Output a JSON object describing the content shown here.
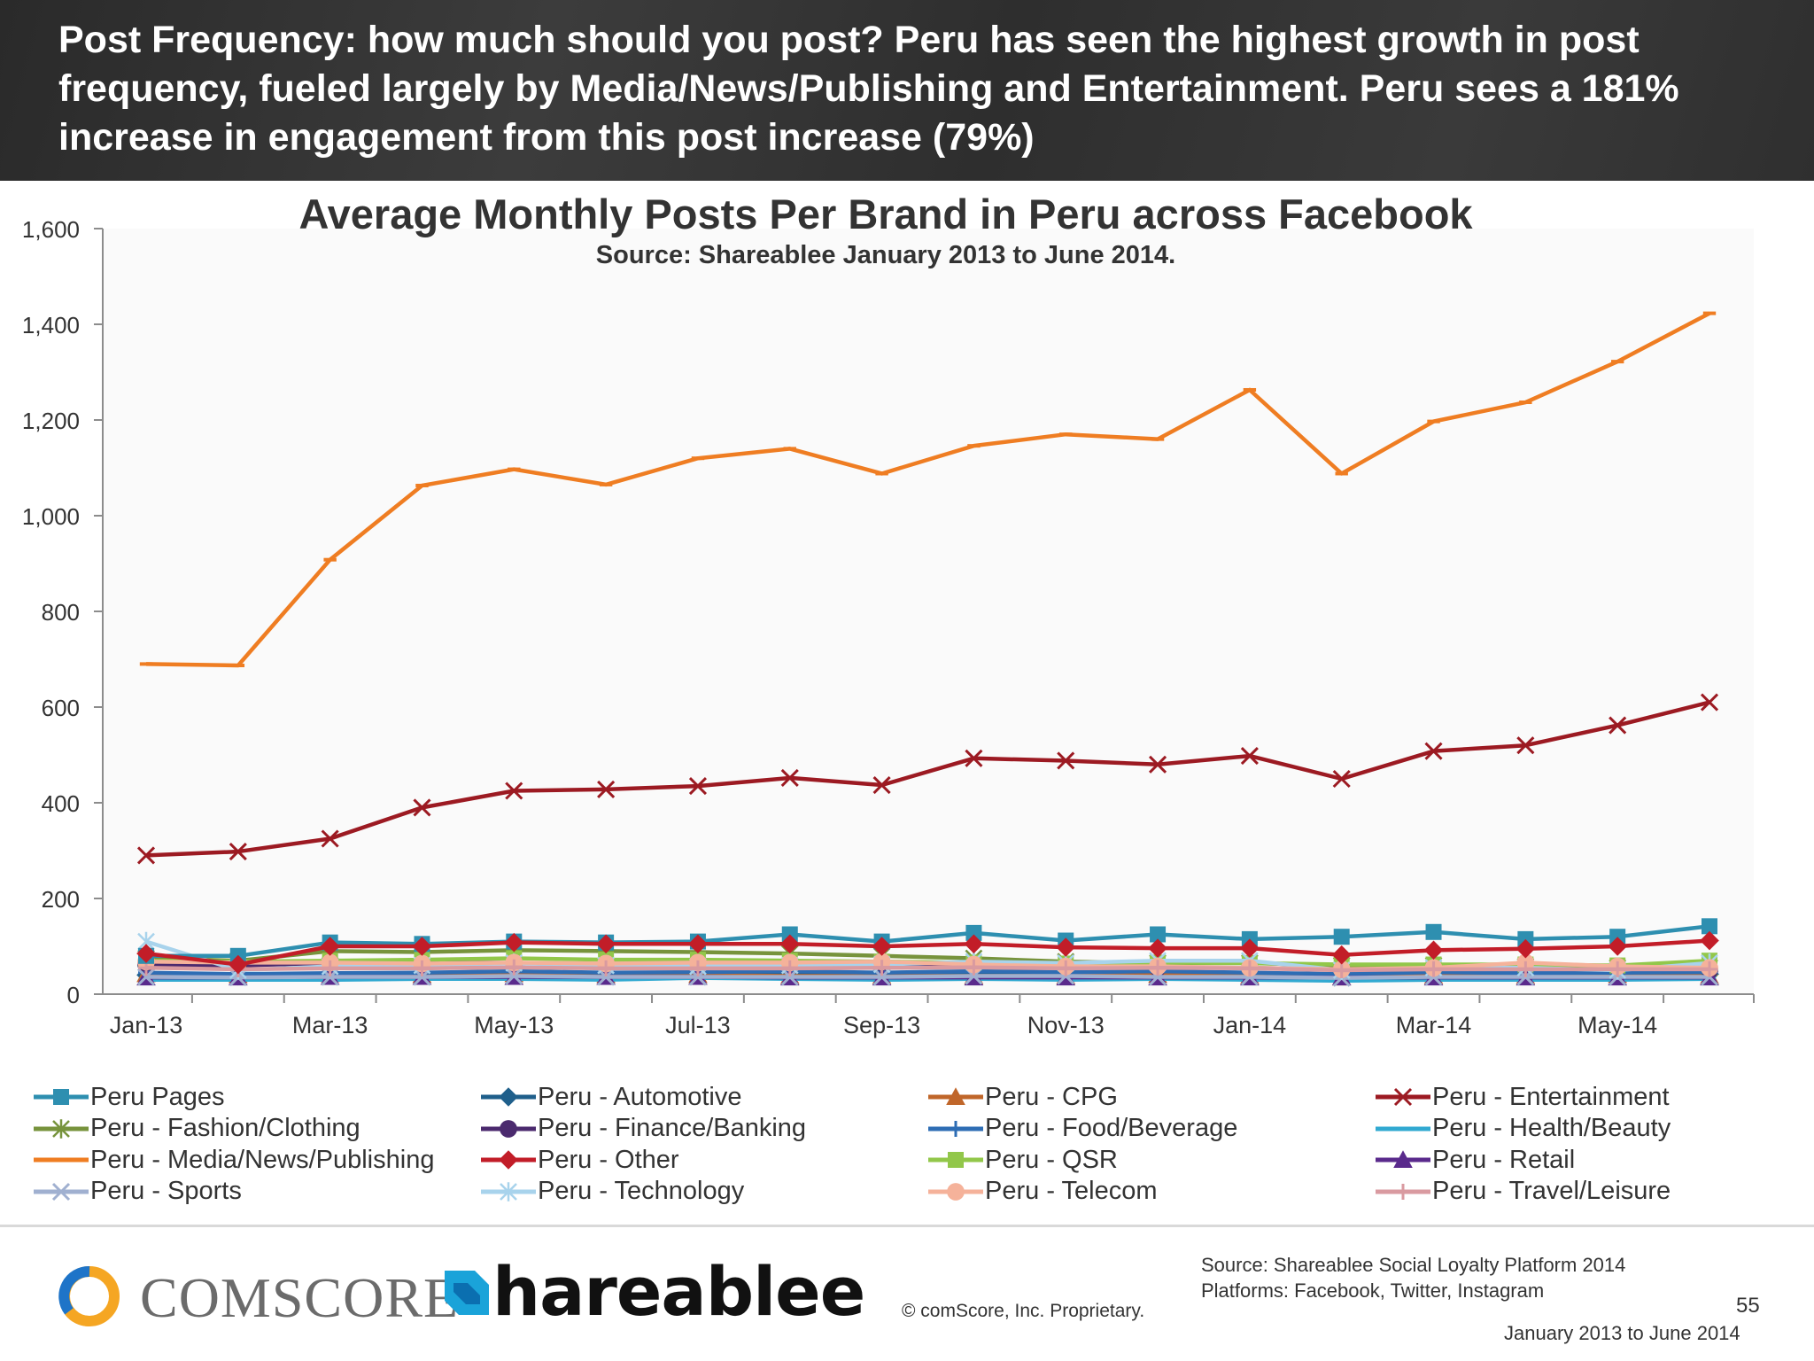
{
  "header": {
    "title": "Post Frequency: how much should you post? Peru has seen the highest growth in post frequency, fueled largely by Media/News/Publishing and Entertainment. Peru sees a 181% increase in engagement from this post increase (79%)"
  },
  "chart_data": {
    "type": "line",
    "title": "Average Monthly Posts Per Brand in Peru across Facebook",
    "subtitle": "Source: Shareablee January 2013 to June 2014.",
    "xlabel": "",
    "ylabel": "",
    "ylim": [
      0,
      1600
    ],
    "yticks": [
      "0",
      "200",
      "400",
      "600",
      "800",
      "1,000",
      "1,200",
      "1,400",
      "1,600"
    ],
    "x": [
      "Jan-13",
      "Feb-13",
      "Mar-13",
      "Apr-13",
      "May-13",
      "Jun-13",
      "Jul-13",
      "Aug-13",
      "Sep-13",
      "Oct-13",
      "Nov-13",
      "Dec-13",
      "Jan-14",
      "Feb-14",
      "Mar-14",
      "Apr-14",
      "May-14",
      "Jun-14"
    ],
    "xtick_labels": [
      "Jan-13",
      "Mar-13",
      "May-13",
      "Jul-13",
      "Sep-13",
      "Nov-13",
      "Jan-14",
      "Mar-14",
      "May-14"
    ],
    "legend_position": "bottom",
    "grid": false,
    "series": [
      {
        "name": "Peru Pages",
        "color": "#2e8fb0",
        "marker": "square",
        "values": [
          80,
          80,
          108,
          105,
          110,
          108,
          110,
          125,
          110,
          128,
          112,
          125,
          115,
          120,
          130,
          115,
          120,
          142
        ]
      },
      {
        "name": "Peru - Automotive",
        "color": "#1f5f8b",
        "marker": "diamond",
        "values": [
          40,
          38,
          40,
          40,
          42,
          40,
          42,
          42,
          40,
          42,
          40,
          42,
          40,
          40,
          42,
          40,
          42,
          42
        ]
      },
      {
        "name": "Peru - CPG",
        "color": "#c0662a",
        "marker": "triangle",
        "values": [
          42,
          40,
          42,
          40,
          42,
          40,
          40,
          38,
          38,
          38,
          38,
          40,
          38,
          35,
          38,
          38,
          40,
          38
        ]
      },
      {
        "name": "Peru - Entertainment",
        "color": "#9c1a22",
        "marker": "x",
        "values": [
          290,
          298,
          325,
          390,
          425,
          428,
          435,
          452,
          437,
          493,
          488,
          480,
          498,
          450,
          508,
          520,
          562,
          610
        ]
      },
      {
        "name": "Peru - Fashion/Clothing",
        "color": "#77933c",
        "marker": "star",
        "values": [
          75,
          70,
          90,
          88,
          92,
          90,
          88,
          85,
          80,
          75,
          68,
          65,
          65,
          60,
          60,
          58,
          55,
          55
        ]
      },
      {
        "name": "Peru - Finance/Banking",
        "color": "#4b2a6e",
        "marker": "circle",
        "values": [
          62,
          60,
          65,
          68,
          65,
          62,
          60,
          60,
          58,
          58,
          55,
          55,
          55,
          52,
          52,
          52,
          50,
          50
        ]
      },
      {
        "name": "Peru - Food/Beverage",
        "color": "#2e6db4",
        "marker": "plus",
        "values": [
          45,
          42,
          44,
          45,
          48,
          45,
          46,
          48,
          45,
          48,
          46,
          48,
          45,
          42,
          46,
          44,
          45,
          46
        ]
      },
      {
        "name": "Peru - Health/Beauty",
        "color": "#31a9d1",
        "marker": "dash",
        "values": [
          30,
          30,
          30,
          32,
          32,
          30,
          34,
          32,
          30,
          32,
          30,
          32,
          30,
          28,
          30,
          30,
          30,
          32
        ]
      },
      {
        "name": "Peru - Media/News/Publishing",
        "color": "#ef7d22",
        "marker": "dash",
        "values": [
          690,
          687,
          908,
          1063,
          1097,
          1065,
          1120,
          1140,
          1088,
          1146,
          1170,
          1160,
          1263,
          1088,
          1197,
          1237,
          1322,
          1423
        ]
      },
      {
        "name": "Peru - Other",
        "color": "#c21d28",
        "marker": "diamond",
        "values": [
          85,
          62,
          100,
          100,
          108,
          105,
          105,
          105,
          100,
          105,
          98,
          96,
          96,
          82,
          92,
          95,
          100,
          112
        ]
      },
      {
        "name": "Peru - QSR",
        "color": "#92c74a",
        "marker": "square",
        "values": [
          70,
          68,
          70,
          72,
          75,
          72,
          72,
          70,
          68,
          66,
          64,
          66,
          65,
          62,
          62,
          62,
          60,
          70
        ]
      },
      {
        "name": "Peru - Retail",
        "color": "#5a2a8c",
        "marker": "triangle",
        "values": [
          35,
          35,
          36,
          36,
          36,
          36,
          36,
          35,
          35,
          35,
          35,
          35,
          35,
          35,
          35,
          35,
          35,
          35
        ]
      },
      {
        "name": "Peru - Sports",
        "color": "#a0b0d0",
        "marker": "x",
        "values": [
          36,
          35,
          36,
          36,
          38,
          36,
          36,
          36,
          36,
          38,
          38,
          36,
          36,
          34,
          36,
          36,
          36,
          36
        ]
      },
      {
        "name": "Peru - Technology",
        "color": "#a8d3ec",
        "marker": "star",
        "values": [
          110,
          50,
          58,
          60,
          65,
          60,
          58,
          60,
          62,
          68,
          65,
          70,
          70,
          50,
          55,
          55,
          50,
          65
        ]
      },
      {
        "name": "Peru - Telecom",
        "color": "#f5b29a",
        "marker": "circle",
        "values": [
          68,
          66,
          66,
          64,
          66,
          64,
          66,
          66,
          68,
          62,
          58,
          58,
          55,
          52,
          55,
          66,
          58,
          55
        ]
      },
      {
        "name": "Peru - Travel/Leisure",
        "color": "#d99aa0",
        "marker": "plus",
        "values": [
          55,
          52,
          54,
          54,
          56,
          54,
          54,
          54,
          55,
          56,
          54,
          55,
          54,
          50,
          52,
          52,
          52,
          52
        ]
      }
    ]
  },
  "footer": {
    "comscore_logo_text": "comScore",
    "shareablee_logo_text": "Shareablee",
    "copyright": "© comScore, Inc.    Proprietary.",
    "source_line1": "Source: Shareablee Social Loyalty Platform 2014",
    "source_line2": "Platforms: Facebook, Twitter, Instagram",
    "page_number": "55",
    "date_range": "January 2013 to June 2014"
  }
}
